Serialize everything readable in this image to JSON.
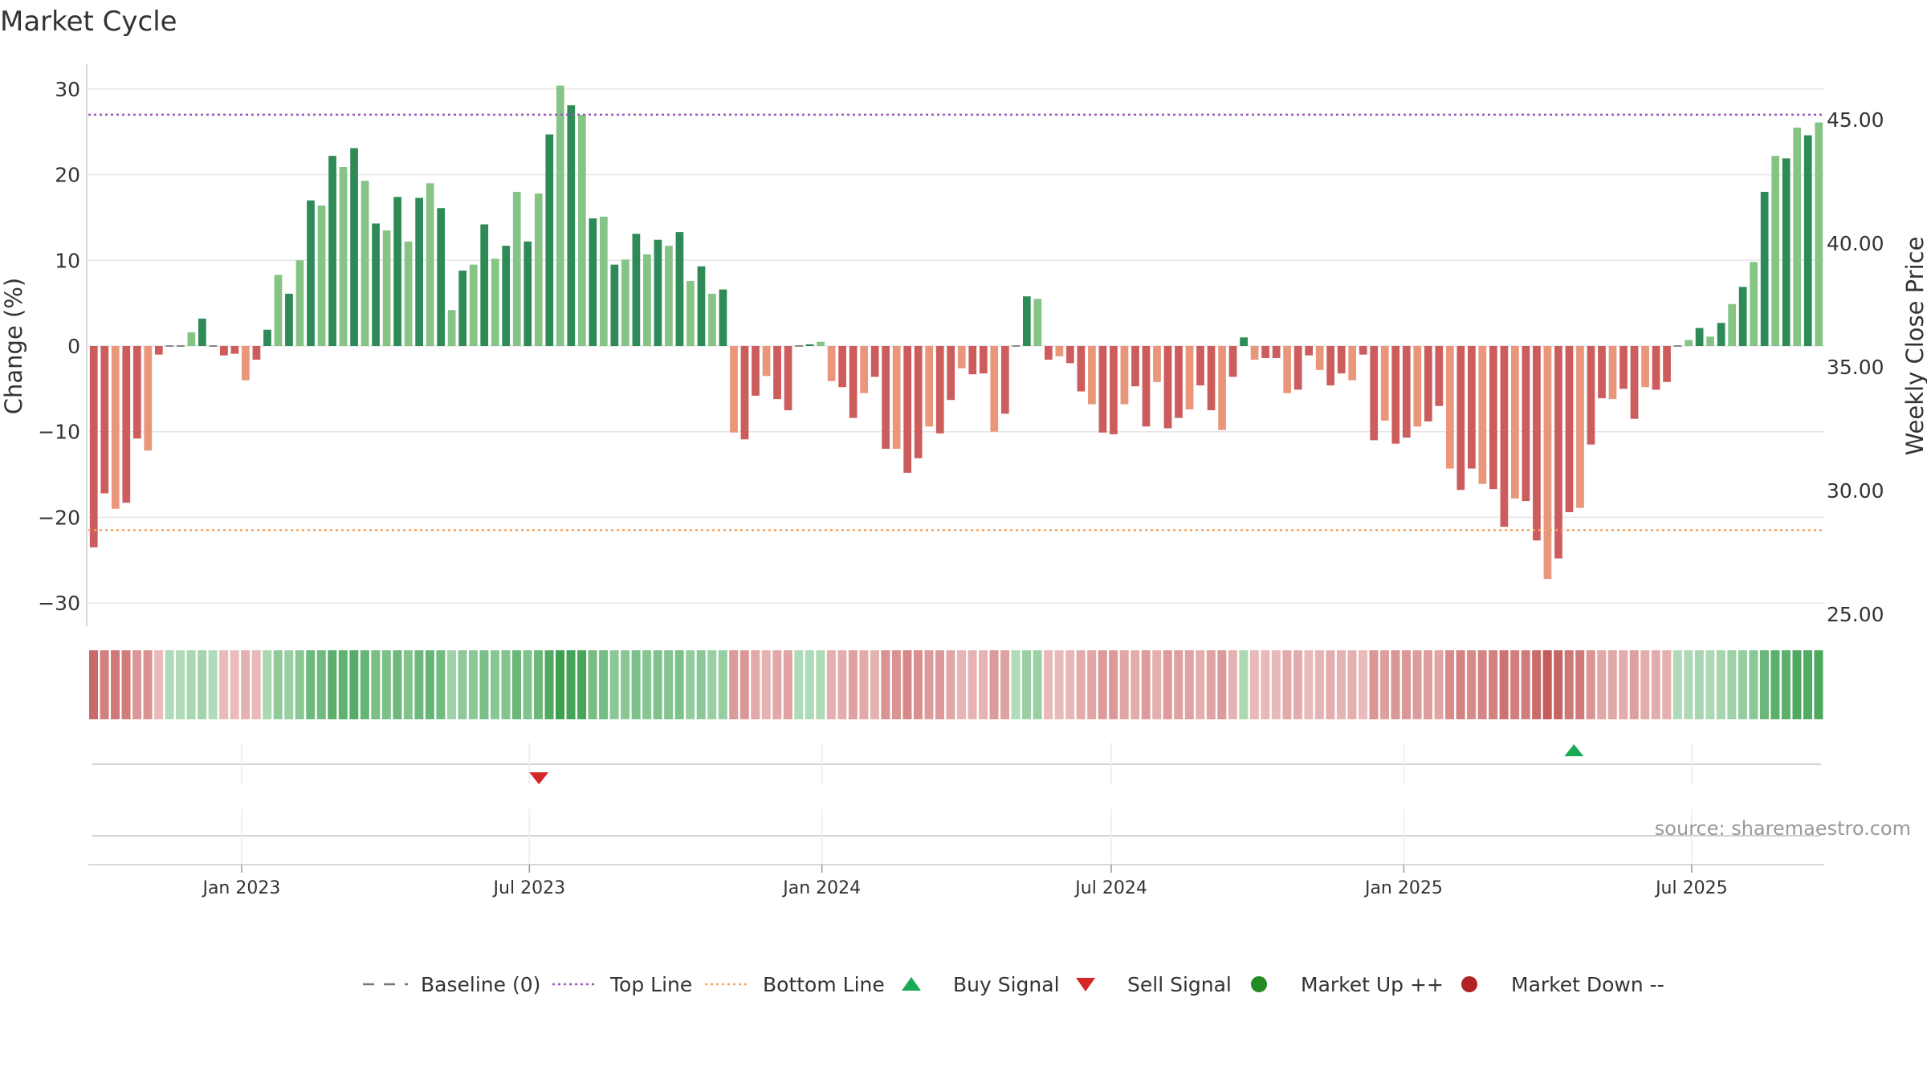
{
  "chart_data": {
    "type": "bar",
    "title": "Market Cycle",
    "ylabel": "Change (%)",
    "y2label": "Weekly Close Price",
    "ylim": [
      -32.5,
      32.5
    ],
    "y2lim": [
      25,
      46
    ],
    "yticks": [
      30,
      20,
      10,
      0,
      -10,
      -20,
      -30
    ],
    "y2ticks": [
      "45.00",
      "40.00",
      "35.00",
      "30.00",
      "25.00"
    ],
    "top_line": 27,
    "bottom_line": -21.5,
    "x_start": "2022-09-30",
    "x_end": "2025-09-19",
    "x_step_days": 7,
    "x_ticks": [
      {
        "label": "Jan 2023",
        "date": "2023-01-01"
      },
      {
        "label": "Jul 2023",
        "date": "2023-07-01"
      },
      {
        "label": "Jan 2024",
        "date": "2024-01-01"
      },
      {
        "label": "Jul 2024",
        "date": "2024-07-01"
      },
      {
        "label": "Jan 2025",
        "date": "2025-01-01"
      },
      {
        "label": "Jul 2025",
        "date": "2025-07-01"
      }
    ],
    "values": [
      -23.5,
      -17.2,
      -19,
      -18.3,
      -10.8,
      -12.2,
      -1,
      0,
      0,
      1.6,
      3.2,
      0,
      -1.1,
      -0.9,
      -4,
      -1.6,
      1.9,
      8.3,
      6.1,
      10,
      17,
      16.4,
      22.2,
      20.9,
      23.1,
      19.3,
      14.3,
      13.5,
      17.4,
      12.2,
      17.3,
      19,
      16.1,
      4.2,
      8.8,
      9.5,
      14.2,
      10.2,
      11.7,
      18,
      12.2,
      17.8,
      24.7,
      30.4,
      28.1,
      27,
      14.9,
      15.1,
      9.5,
      10.1,
      13.1,
      10.7,
      12.4,
      11.7,
      13.3,
      7.6,
      9.3,
      6.1,
      6.6,
      -10.1,
      -10.9,
      -5.8,
      -3.5,
      -6.2,
      -7.5,
      0,
      0.2,
      0.5,
      -4.1,
      -4.8,
      -8.4,
      -5.5,
      -3.6,
      -12,
      -12,
      -14.8,
      -13.1,
      -9.4,
      -10.2,
      -6.3,
      -2.6,
      -3.3,
      -3.2,
      -10,
      -7.9,
      0,
      5.8,
      5.5,
      -1.6,
      -1.2,
      -2,
      -5.3,
      -6.8,
      -10.1,
      -10.3,
      -6.8,
      -4.7,
      -9.4,
      -4.2,
      -9.6,
      -8.4,
      -7.4,
      -4.6,
      -7.5,
      -9.8,
      -3.6,
      1,
      -1.6,
      -1.4,
      -1.4,
      -5.5,
      -5.1,
      -1.1,
      -2.8,
      -4.6,
      -3.2,
      -4,
      -1,
      -11,
      -8.7,
      -11.4,
      -10.7,
      -9.4,
      -8.8,
      -7,
      -14.3,
      -16.8,
      -14.3,
      -16.1,
      -16.7,
      -21.1,
      -17.8,
      -18.1,
      -22.7,
      -27.2,
      -24.8,
      -19.4,
      -18.9,
      -11.5,
      -6.1,
      -6.2,
      -5,
      -8.5,
      -4.8,
      -5.1,
      -4.2,
      0,
      0.7,
      2.1,
      1.1,
      2.7,
      4.9,
      6.9,
      9.8,
      18,
      22.2,
      21.9,
      25.5,
      24.6,
      26.1
    ],
    "series_names": [
      "Baseline (0)",
      "Top Line",
      "Bottom Line",
      "Buy Signal",
      "Sell Signal",
      "Market Up ++",
      "Market Down --"
    ],
    "signals": [
      {
        "type": "sell",
        "date": "2023-07-07"
      },
      {
        "type": "buy",
        "date": "2025-04-18"
      }
    ],
    "colors": {
      "up_dark": "#2e8b57",
      "up_light": "#86c486",
      "down_dark": "#cd5c5c",
      "down_light": "#e9967a",
      "top_line": "#9b59b6",
      "bottom_line": "#f4a460",
      "buy": "#1aaa55",
      "sell": "#d62728",
      "market_up": "#228b22",
      "market_down": "#b22222",
      "baseline": "#777777"
    },
    "source": "source: sharemaestro.com",
    "legend_position": "bottom-center",
    "grid": true
  }
}
